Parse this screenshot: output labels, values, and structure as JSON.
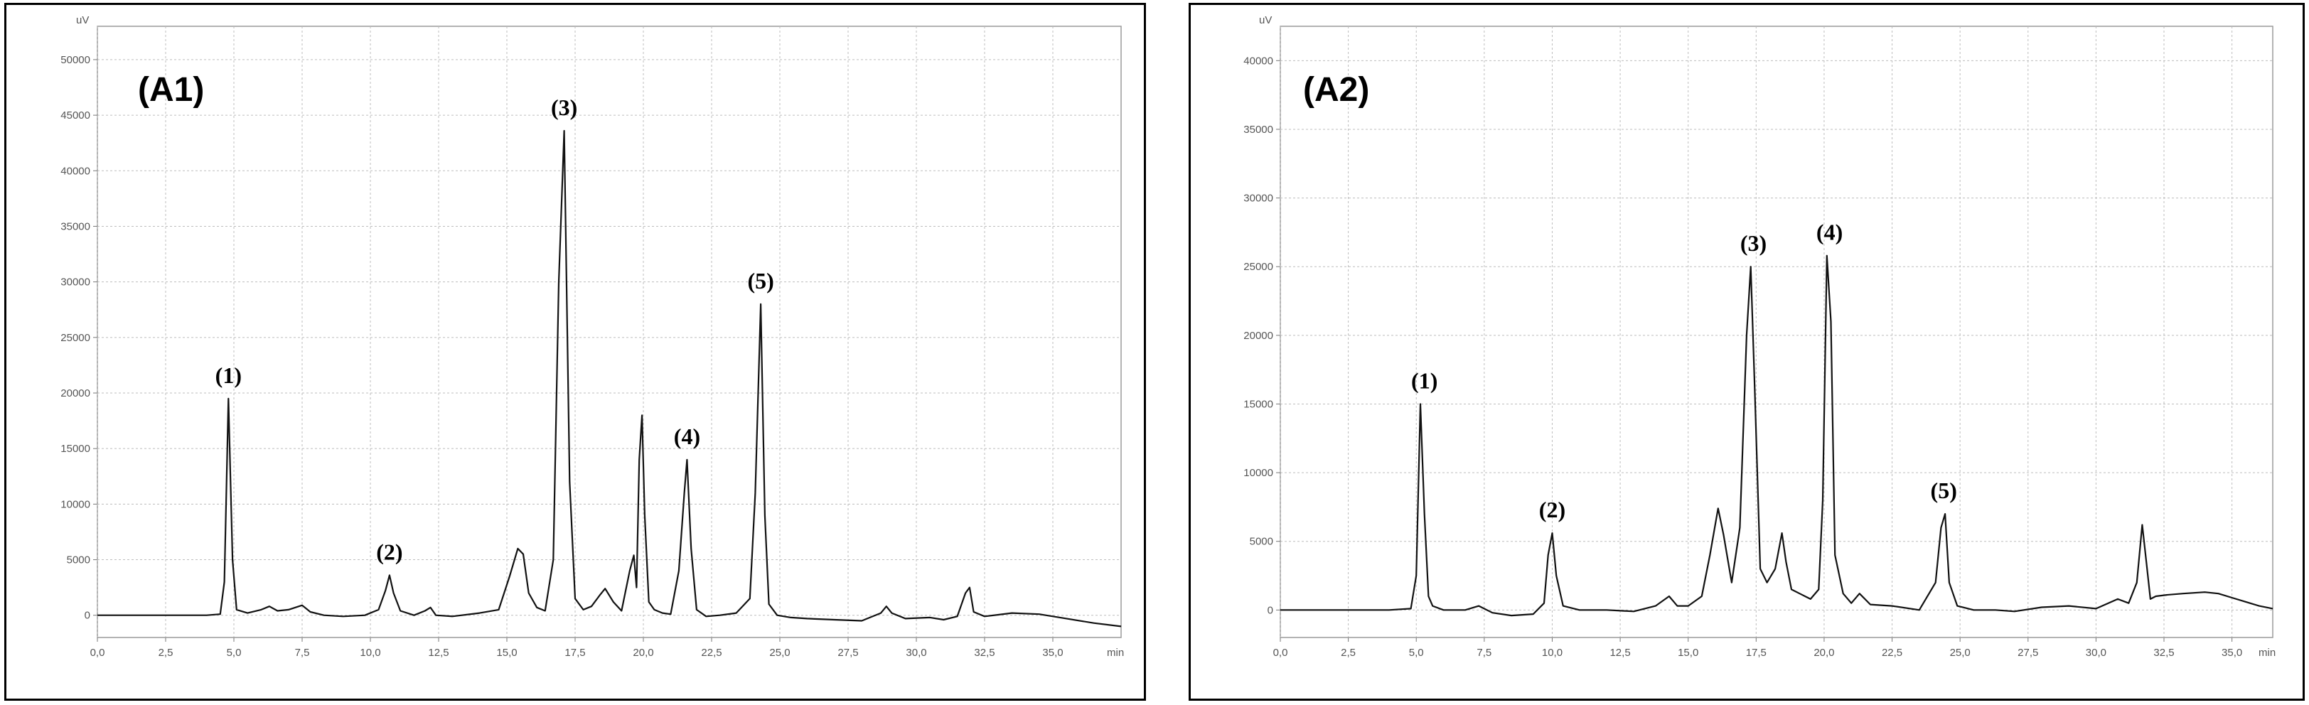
{
  "chart_data": [
    {
      "type": "line",
      "title": "(A1)",
      "x_unit": "min",
      "y_unit": "uV",
      "xlim": [
        0,
        37.5
      ],
      "ylim": [
        -2000,
        53000
      ],
      "grid": true,
      "x_ticks": [
        "0,0",
        "2,5",
        "5,0",
        "7,5",
        "10,0",
        "12,5",
        "15,0",
        "17,5",
        "20,0",
        "22,5",
        "25,0",
        "27,5",
        "30,0",
        "32,5",
        "35,0"
      ],
      "y_ticks": [
        "0",
        "5000",
        "10000",
        "15000",
        "20000",
        "25000",
        "30000",
        "35000",
        "40000",
        "45000",
        "50000"
      ],
      "peaks": [
        {
          "label": "(1)",
          "x": 4.8,
          "y": 19500
        },
        {
          "label": "(2)",
          "x": 10.7,
          "y": 3600
        },
        {
          "label": "(3)",
          "x": 17.1,
          "y": 43600
        },
        {
          "label": "(4)",
          "x": 21.6,
          "y": 14000
        },
        {
          "label": "(5)",
          "x": 24.3,
          "y": 28000
        }
      ],
      "series": [
        {
          "x": [
            0,
            4.0,
            4.5,
            4.65,
            4.8,
            4.95,
            5.1,
            5.5,
            6.0,
            6.3,
            6.6,
            7.0,
            7.5,
            7.8,
            8.3,
            9.0,
            9.8,
            10.3,
            10.55,
            10.7,
            10.85,
            11.1,
            11.6,
            12.0,
            12.2,
            12.4,
            13.0,
            14.0,
            14.7,
            15.1,
            15.4,
            15.6,
            15.8,
            16.1,
            16.4,
            16.7,
            16.9,
            17.1,
            17.3,
            17.5,
            17.8,
            18.1,
            18.4,
            18.6,
            18.9,
            19.2,
            19.5,
            19.65,
            19.75,
            19.85,
            19.95,
            20.05,
            20.2,
            20.4,
            20.7,
            21.0,
            21.3,
            21.5,
            21.6,
            21.75,
            21.95,
            22.3,
            22.8,
            23.4,
            23.9,
            24.1,
            24.3,
            24.45,
            24.6,
            24.9,
            25.4,
            26.0,
            27.0,
            28.0,
            28.7,
            28.9,
            29.1,
            29.6,
            30.5,
            31.0,
            31.5,
            31.8,
            31.95,
            32.1,
            32.5,
            33.5,
            34.5,
            35.5,
            36.5,
            37.5
          ],
          "y": [
            0,
            0,
            100,
            3000,
            19500,
            5000,
            500,
            200,
            500,
            800,
            400,
            500,
            900,
            300,
            0,
            -100,
            0,
            500,
            2200,
            3600,
            2000,
            400,
            0,
            400,
            700,
            0,
            -100,
            200,
            500,
            3500,
            6000,
            5500,
            2000,
            700,
            400,
            5000,
            30000,
            43600,
            12000,
            1500,
            500,
            800,
            1800,
            2400,
            1200,
            400,
            4000,
            5400,
            2500,
            14000,
            18000,
            9000,
            1200,
            500,
            200,
            100,
            4000,
            11000,
            14000,
            6000,
            500,
            -100,
            0,
            200,
            1500,
            11000,
            28000,
            9000,
            1000,
            0,
            -200,
            -300,
            -400,
            -500,
            200,
            800,
            200,
            -300,
            -200,
            -400,
            -100,
            2000,
            2500,
            300,
            -100,
            200,
            100,
            -300,
            -700,
            -1000
          ]
        }
      ]
    },
    {
      "type": "line",
      "title": "(A2)",
      "x_unit": "min",
      "y_unit": "uV",
      "xlim": [
        0,
        36.5
      ],
      "ylim": [
        -2000,
        42500
      ],
      "grid": true,
      "x_ticks": [
        "0,0",
        "2,5",
        "5,0",
        "7,5",
        "10,0",
        "12,5",
        "15,0",
        "17,5",
        "20,0",
        "22,5",
        "25,0",
        "27,5",
        "30,0",
        "32,5",
        "35,0"
      ],
      "y_ticks": [
        "0",
        "5000",
        "10000",
        "15000",
        "20000",
        "25000",
        "30000",
        "35000",
        "40000"
      ],
      "peaks": [
        {
          "label": "(1)",
          "x": 5.3,
          "y": 15000
        },
        {
          "label": "(2)",
          "x": 10.0,
          "y": 5600
        },
        {
          "label": "(3)",
          "x": 17.4,
          "y": 25000
        },
        {
          "label": "(4)",
          "x": 20.2,
          "y": 25800
        },
        {
          "label": "(5)",
          "x": 24.4,
          "y": 7000
        }
      ],
      "series": [
        {
          "x": [
            0,
            4.0,
            4.8,
            5.0,
            5.15,
            5.3,
            5.45,
            5.6,
            6.0,
            6.8,
            7.3,
            7.8,
            8.5,
            9.3,
            9.7,
            9.85,
            10.0,
            10.15,
            10.4,
            11.0,
            12.0,
            13.0,
            13.8,
            14.3,
            14.6,
            15.0,
            15.5,
            15.8,
            16.1,
            16.3,
            16.6,
            16.9,
            17.15,
            17.3,
            17.45,
            17.65,
            17.9,
            18.2,
            18.45,
            18.6,
            18.8,
            19.1,
            19.5,
            19.8,
            19.95,
            20.1,
            20.25,
            20.4,
            20.7,
            21.0,
            21.3,
            21.7,
            22.5,
            23.5,
            24.1,
            24.3,
            24.45,
            24.6,
            24.9,
            25.5,
            26.3,
            27.0,
            28.0,
            29.0,
            30.0,
            30.8,
            31.2,
            31.5,
            31.7,
            31.85,
            32.0,
            32.2,
            32.6,
            33.2,
            34.0,
            34.5,
            35.0,
            35.5,
            36.0,
            36.5
          ],
          "y": [
            0,
            0,
            100,
            2500,
            15000,
            7000,
            1000,
            300,
            0,
            0,
            300,
            -200,
            -400,
            -300,
            500,
            4000,
            5600,
            2500,
            300,
            0,
            0,
            -100,
            300,
            1000,
            300,
            300,
            1000,
            4000,
            7400,
            5500,
            2000,
            6000,
            20000,
            25000,
            16000,
            3000,
            2000,
            3000,
            5600,
            3500,
            1500,
            1200,
            800,
            1500,
            8000,
            25800,
            21000,
            4000,
            1200,
            500,
            1200,
            400,
            300,
            0,
            2000,
            6000,
            7000,
            2000,
            300,
            0,
            0,
            -100,
            200,
            300,
            100,
            800,
            500,
            2000,
            6200,
            3500,
            800,
            1000,
            1100,
            1200,
            1300,
            1200,
            900,
            600,
            300,
            100
          ]
        }
      ]
    }
  ]
}
